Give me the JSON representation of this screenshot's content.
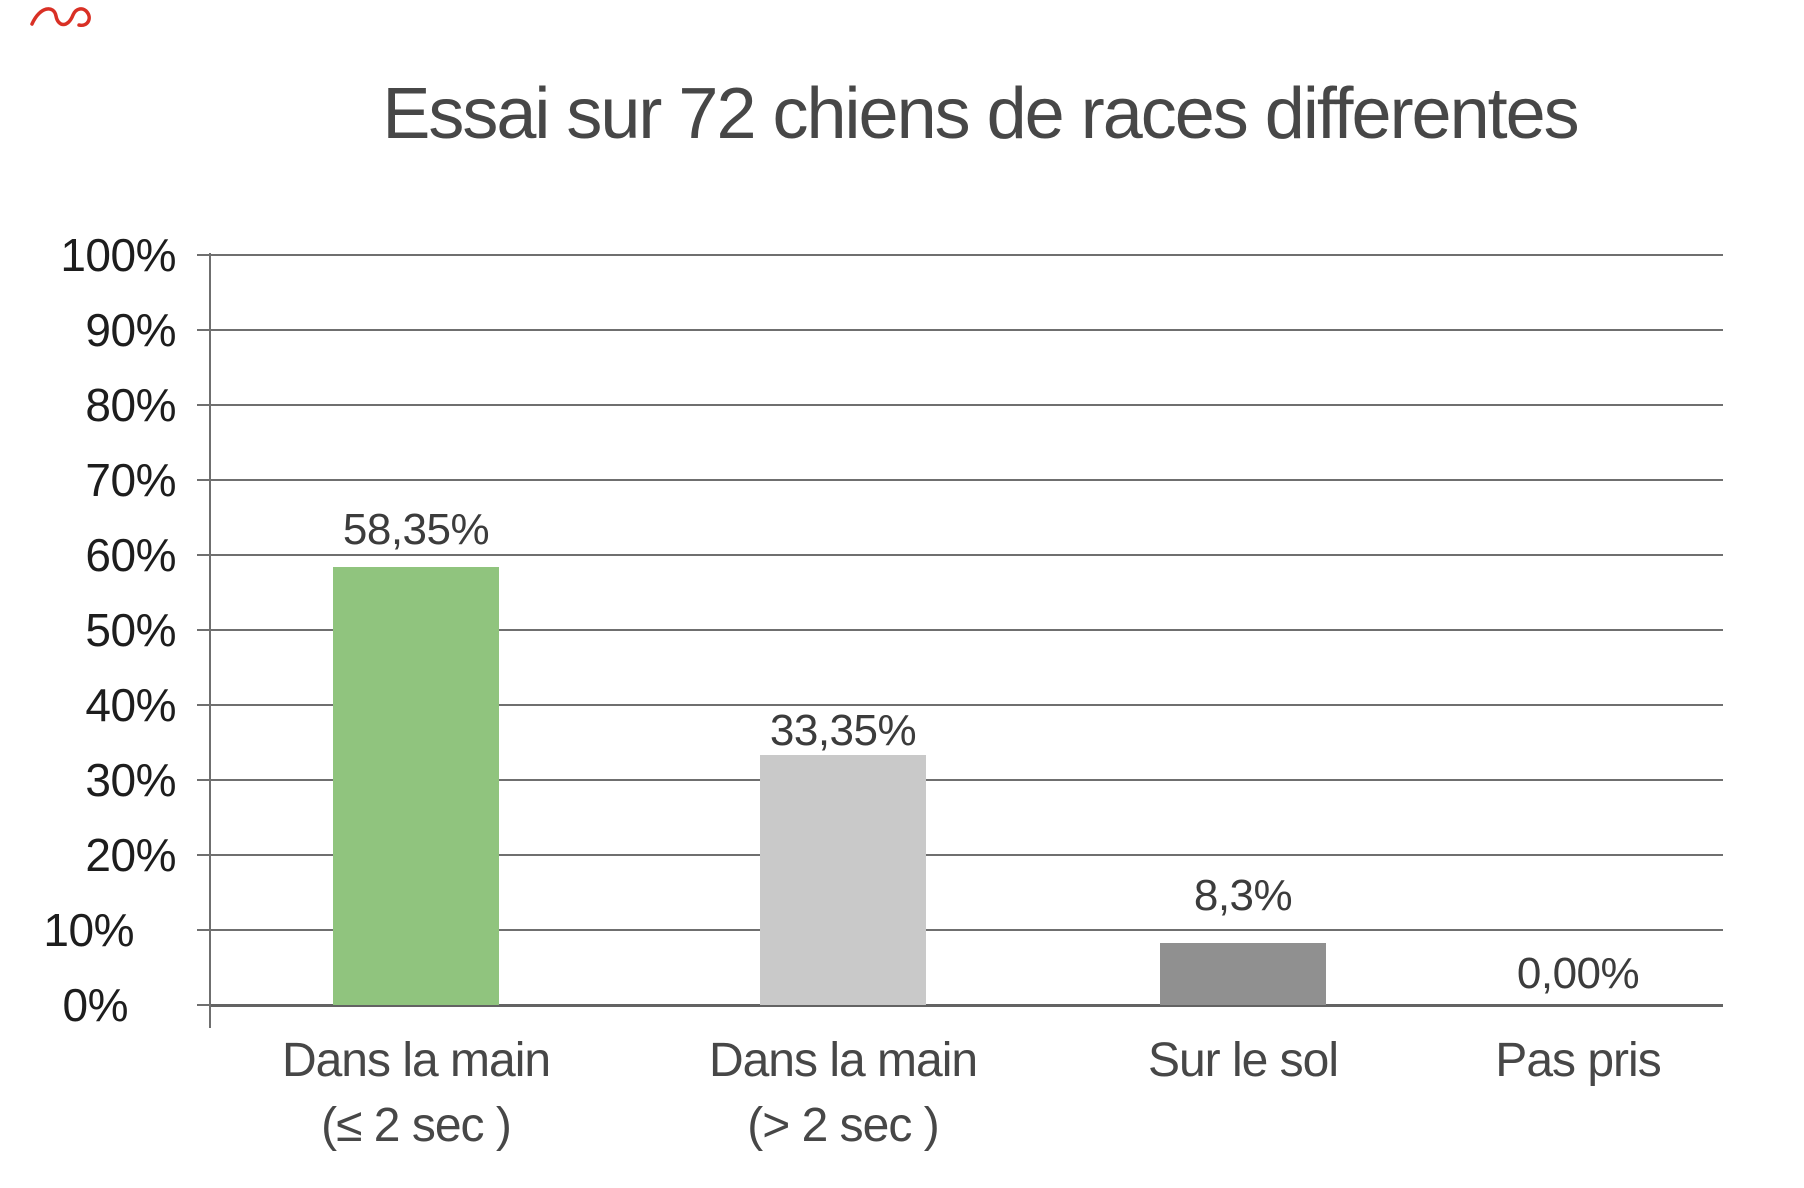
{
  "chart_data": {
    "type": "bar",
    "title": "Essai sur 72 chiens de races differentes",
    "categories": [
      [
        "Dans la main",
        "(≤ 2 sec )"
      ],
      [
        "Dans la main",
        "(> 2 sec )"
      ],
      [
        "Sur le sol"
      ],
      [
        "Pas pris"
      ]
    ],
    "values": [
      58.35,
      33.35,
      8.3,
      0
    ],
    "value_labels": [
      "58,35%",
      "33,35%",
      "8,3%",
      "0,00%"
    ],
    "bar_colors": [
      "#90C47E",
      "#C9C9C9",
      "#909090",
      "#909090"
    ],
    "ylim": [
      0,
      100
    ],
    "ytick_step": 10,
    "ytick_labels": [
      "0%",
      "10%",
      "20%",
      "30%",
      "40%",
      "50%",
      "60%",
      "70%",
      "80%",
      "90%",
      "100%"
    ],
    "grid": true,
    "legend": "none",
    "xlabel": "",
    "ylabel": ""
  },
  "decorations": {
    "red_scribble_color": "#D93025"
  },
  "text_colors": {
    "title": "#474747",
    "y_labels": "#1d1d1d",
    "value_labels": "#3c3c3c",
    "category_labels": "#474747"
  },
  "grid_color": "#6f6f6f"
}
